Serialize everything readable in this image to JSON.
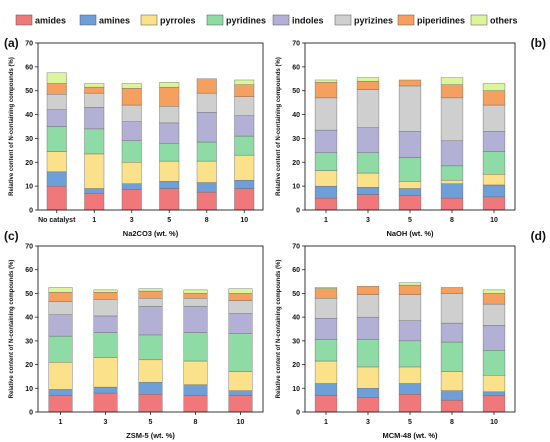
{
  "legend": {
    "items": [
      {
        "label": "amides",
        "color": "#f1787a"
      },
      {
        "label": "amines",
        "color": "#6f9fd8"
      },
      {
        "label": "pyrroles",
        "color": "#fbe18a"
      },
      {
        "label": "pyridines",
        "color": "#8edba6"
      },
      {
        "label": "indoles",
        "color": "#b3b0d6"
      },
      {
        "label": "pyrizines",
        "color": "#cfcfcf"
      },
      {
        "label": "piperidines",
        "color": "#f5a05e"
      },
      {
        "label": "others",
        "color": "#dcf59a"
      }
    ]
  },
  "chart_data": [
    {
      "type": "bar",
      "stacked": true,
      "panel": "(a)",
      "categories": [
        "No catalyst",
        "1",
        "3",
        "5",
        "8",
        "10"
      ],
      "xlabel": "Na2CO3 (wt. %)",
      "ylabel": "Relative content of N-containing compounds (%)",
      "ylim": [
        0,
        70
      ],
      "yticks": [
        "0",
        "10",
        "20",
        "30",
        "40",
        "50",
        "60",
        "70"
      ],
      "series": [
        {
          "name": "amides",
          "values": [
            10,
            7,
            8.5,
            9,
            7.5,
            9
          ]
        },
        {
          "name": "amines",
          "values": [
            6,
            2,
            2.5,
            3,
            4,
            3.5
          ]
        },
        {
          "name": "pyrroles",
          "values": [
            8.5,
            14.5,
            9,
            8.5,
            9,
            10.5
          ]
        },
        {
          "name": "pyridines",
          "values": [
            10.5,
            10.5,
            9,
            7.5,
            8,
            8
          ]
        },
        {
          "name": "indoles",
          "values": [
            7,
            9,
            8,
            8.5,
            12.5,
            8.5
          ]
        },
        {
          "name": "pyrizines",
          "values": [
            6.5,
            6,
            7,
            7,
            8,
            8
          ]
        },
        {
          "name": "piperidines",
          "values": [
            4.5,
            2.5,
            7,
            8,
            6,
            5
          ]
        },
        {
          "name": "others",
          "values": [
            4.5,
            1.5,
            2,
            2,
            0,
            2
          ]
        }
      ]
    },
    {
      "type": "bar",
      "stacked": true,
      "panel": "(b)",
      "categories": [
        "1",
        "3",
        "5",
        "8",
        "10"
      ],
      "xlabel": "NaOH (wt. %)",
      "ylabel": "Relative content of N-containing compounds (%)",
      "ylim": [
        0,
        70
      ],
      "yticks": [
        "0",
        "10",
        "20",
        "30",
        "40",
        "50",
        "60",
        "70"
      ],
      "series": [
        {
          "name": "amides",
          "values": [
            5,
            6.5,
            6,
            5,
            5.5
          ]
        },
        {
          "name": "amines",
          "values": [
            5,
            3,
            3,
            6,
            5
          ]
        },
        {
          "name": "pyrroles",
          "values": [
            6.5,
            6,
            3,
            1.5,
            4.5
          ]
        },
        {
          "name": "pyridines",
          "values": [
            7.5,
            8.5,
            10,
            6,
            9.5
          ]
        },
        {
          "name": "indoles",
          "values": [
            9.5,
            10.5,
            11,
            10.5,
            8.5
          ]
        },
        {
          "name": "pyrizines",
          "values": [
            13.5,
            16,
            19,
            18,
            11
          ]
        },
        {
          "name": "piperidines",
          "values": [
            6.5,
            3.5,
            2.5,
            5.5,
            6
          ]
        },
        {
          "name": "others",
          "values": [
            1,
            1.5,
            0,
            3,
            3
          ]
        }
      ]
    },
    {
      "type": "bar",
      "stacked": true,
      "panel": "(c)",
      "categories": [
        "1",
        "3",
        "5",
        "8",
        "10"
      ],
      "xlabel": "ZSM-5 (wt. %)",
      "ylabel": "Relative content of N-containing compounds (%)",
      "ylim": [
        0,
        70
      ],
      "yticks": [
        "0",
        "10",
        "20",
        "30",
        "40",
        "50",
        "60",
        "70"
      ],
      "series": [
        {
          "name": "amides",
          "values": [
            7,
            8,
            7.5,
            7,
            7
          ]
        },
        {
          "name": "amines",
          "values": [
            2.5,
            2.5,
            5,
            4.5,
            2
          ]
        },
        {
          "name": "pyrroles",
          "values": [
            11.5,
            12.5,
            9.5,
            10,
            8
          ]
        },
        {
          "name": "pyridines",
          "values": [
            11,
            10.5,
            10.5,
            12,
            16
          ]
        },
        {
          "name": "indoles",
          "values": [
            9,
            7,
            12,
            11,
            8.5
          ]
        },
        {
          "name": "pyrizines",
          "values": [
            5.5,
            7,
            3.5,
            3.5,
            5.5
          ]
        },
        {
          "name": "piperidines",
          "values": [
            4,
            3,
            3,
            2,
            3
          ]
        },
        {
          "name": "others",
          "values": [
            2,
            1,
            1,
            1.5,
            2
          ]
        }
      ]
    },
    {
      "type": "bar",
      "stacked": true,
      "panel": "(d)",
      "categories": [
        "1",
        "3",
        "5",
        "8",
        "10"
      ],
      "xlabel": "MCM-48 (wt. %)",
      "ylabel": "Relative content of N-containing compounds (%)",
      "ylim": [
        0,
        70
      ],
      "yticks": [
        "0",
        "10",
        "20",
        "30",
        "40",
        "50",
        "60",
        "70"
      ],
      "series": [
        {
          "name": "amides",
          "values": [
            7,
            6,
            7.5,
            5,
            7
          ]
        },
        {
          "name": "amines",
          "values": [
            5,
            4,
            4.5,
            4,
            1.5
          ]
        },
        {
          "name": "pyrroles",
          "values": [
            9.5,
            9,
            7,
            8,
            7
          ]
        },
        {
          "name": "pyridines",
          "values": [
            9,
            11.5,
            11,
            12.5,
            10.5
          ]
        },
        {
          "name": "indoles",
          "values": [
            9,
            9.5,
            8.5,
            8,
            10.5
          ]
        },
        {
          "name": "pyrizines",
          "values": [
            8.5,
            9.5,
            11,
            12.5,
            9
          ]
        },
        {
          "name": "piperidines",
          "values": [
            4,
            3.5,
            4,
            2.5,
            4.5
          ]
        },
        {
          "name": "others",
          "values": [
            0.5,
            0,
            1,
            0,
            1.5
          ]
        }
      ]
    }
  ]
}
